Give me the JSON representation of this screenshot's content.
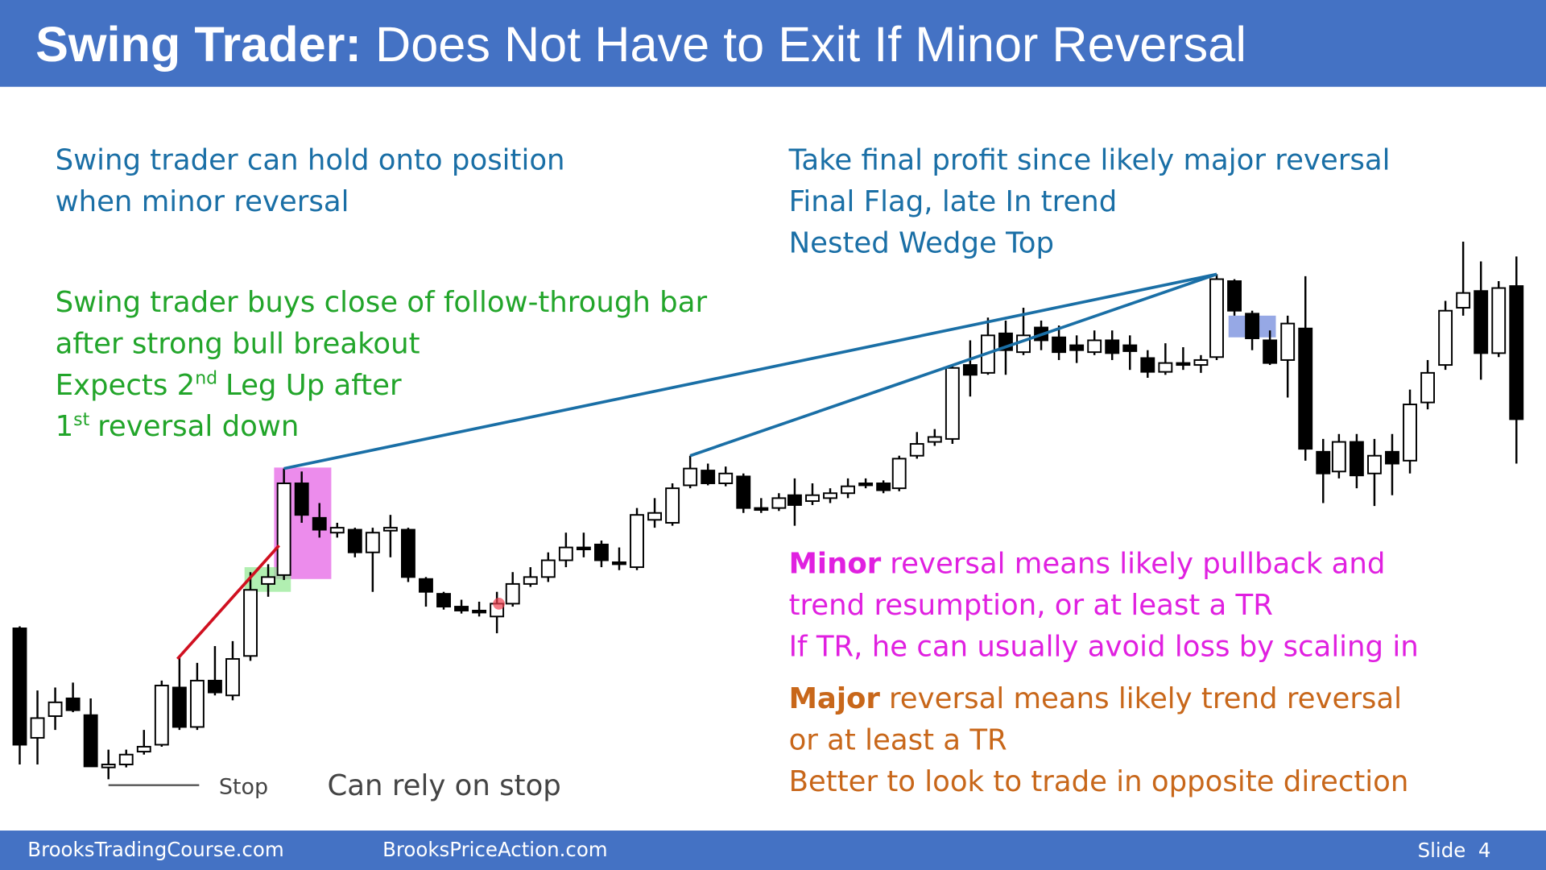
{
  "header": {
    "title_bold": "Swing Trader:",
    "title": "Does Not Have to Exit If Minor Reversal"
  },
  "notes": {
    "left": [
      "Swing trader can hold onto position",
      "when minor reversal"
    ],
    "right": [
      "Take final profit since likely major reversal",
      "Final Flag, late In trend",
      "Nested Wedge Top"
    ],
    "swing": [
      {
        "text": "Swing trader buys close of follow-through bar"
      },
      {
        "text": "after strong bull breakout"
      },
      {
        "text": "Expects 2",
        "sup": "nd",
        "rest": "Leg Up after"
      },
      {
        "text": "1",
        "sup": "st",
        "rest": "reversal down"
      }
    ],
    "minor": {
      "bold": "Minor",
      "lines": [
        "reversal means likely pullback and",
        "trend resumption, or at least a TR",
        "If TR, he can usually avoid loss by scaling in"
      ]
    },
    "major": {
      "bold": "Major",
      "lines": [
        "reversal means likely trend reversal",
        "or at least a TR",
        "Better to look to trade in opposite direction"
      ]
    },
    "stop": "Stop",
    "rely": "Can rely on stop"
  },
  "footer": {
    "left": "BrooksTradingCourse.com",
    "middle": "BrooksPriceAction.com",
    "slide": "Slide  4"
  }
}
